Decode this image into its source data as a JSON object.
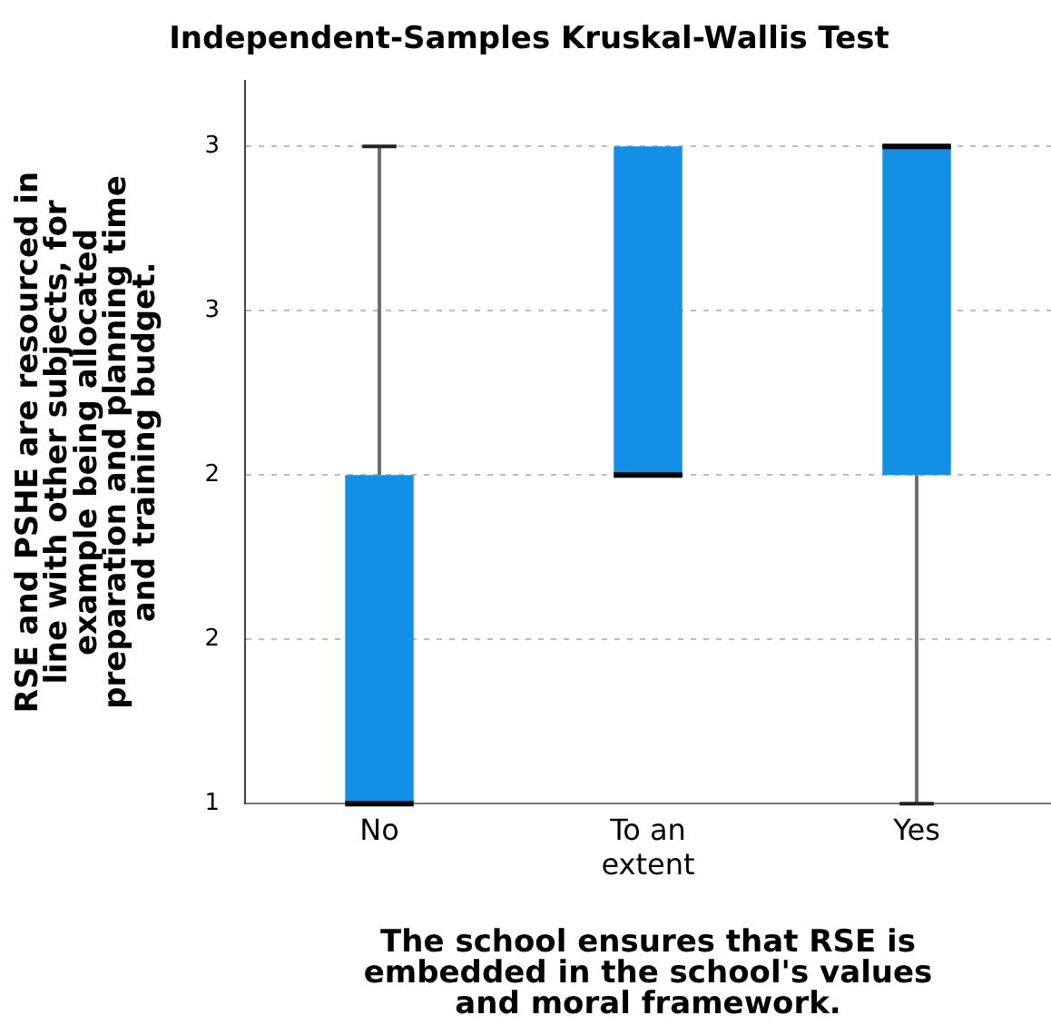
{
  "chart_data": {
    "type": "box",
    "title": "Independent-Samples Kruskal-Wallis Test",
    "xlabel": "The school ensures that RSE is embedded in the school's values and moral framework.",
    "ylabel": "RSE and PSHE are resourced in line with other subjects, for example being allocated preparation and planning time and training budget.",
    "categories": [
      "No",
      "To an extent",
      "Yes"
    ],
    "color": "#138fe6",
    "boxes": [
      {
        "low": 1,
        "q1": 1,
        "median": 1,
        "q3": 2,
        "high": 3
      },
      {
        "low": 2,
        "q1": 2,
        "median": 2,
        "q3": 3,
        "high": 3
      },
      {
        "low": 1,
        "q1": 2,
        "median": 3,
        "q3": 3,
        "high": 3
      }
    ],
    "ylim": [
      1,
      3.2
    ],
    "yticks": [
      1,
      {
        "value": 1.5,
        "label": "2"
      },
      2,
      {
        "value": 2.5,
        "label": "3"
      },
      3
    ],
    "grid": "y"
  }
}
